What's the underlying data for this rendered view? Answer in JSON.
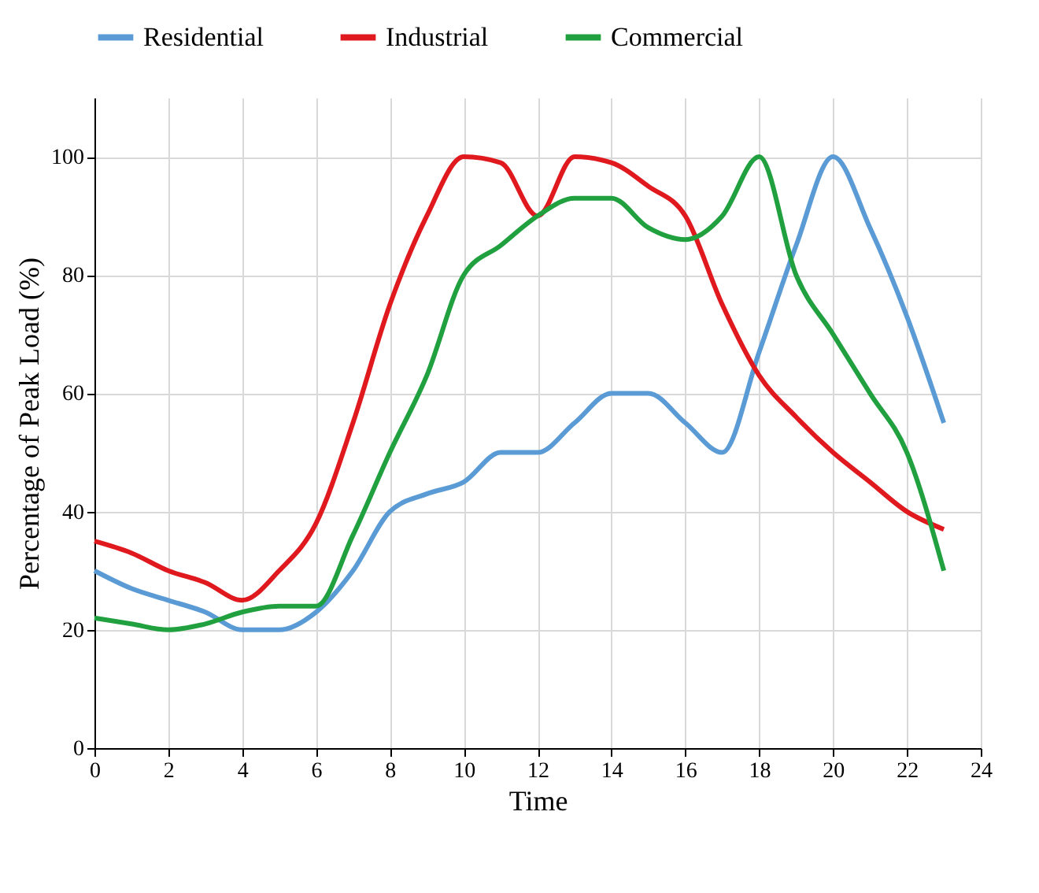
{
  "chart_data": {
    "type": "line",
    "xlabel": "Time",
    "ylabel": "Percentage  of  Peak  Load  (%)",
    "x": [
      0,
      1,
      2,
      3,
      4,
      5,
      6,
      7,
      8,
      9,
      10,
      11,
      12,
      13,
      14,
      15,
      16,
      17,
      18,
      19,
      20,
      21,
      22,
      23
    ],
    "series": [
      {
        "name": "Residential",
        "color": "#5b9bd5",
        "values": [
          30,
          27,
          25,
          23,
          20,
          20,
          23,
          30,
          40,
          43,
          45,
          50,
          50,
          55,
          60,
          60,
          55,
          50,
          67,
          85,
          100,
          88,
          73,
          55
        ]
      },
      {
        "name": "Industrial",
        "color": "#e0191f",
        "values": [
          35,
          33,
          30,
          28,
          25,
          30,
          38,
          55,
          75,
          90,
          100,
          99,
          90,
          100,
          99,
          95,
          90,
          75,
          63,
          56,
          50,
          45,
          40,
          37
        ]
      },
      {
        "name": "Commercial",
        "color": "#21a03f",
        "values": [
          22,
          21,
          20,
          21,
          23,
          24,
          24,
          36,
          50,
          63,
          80,
          85,
          90,
          93,
          93,
          88,
          86,
          90,
          100,
          80,
          70,
          60,
          50,
          30
        ]
      }
    ],
    "xlim": [
      0,
      24
    ],
    "xticks": [
      0,
      2,
      4,
      6,
      8,
      10,
      12,
      14,
      16,
      18,
      20,
      22,
      24
    ],
    "ylim": [
      0,
      110
    ],
    "yticks": [
      0,
      20,
      40,
      60,
      80,
      100
    ],
    "grid": true,
    "legend": "top",
    "marker": "none",
    "line_style": "solid"
  }
}
